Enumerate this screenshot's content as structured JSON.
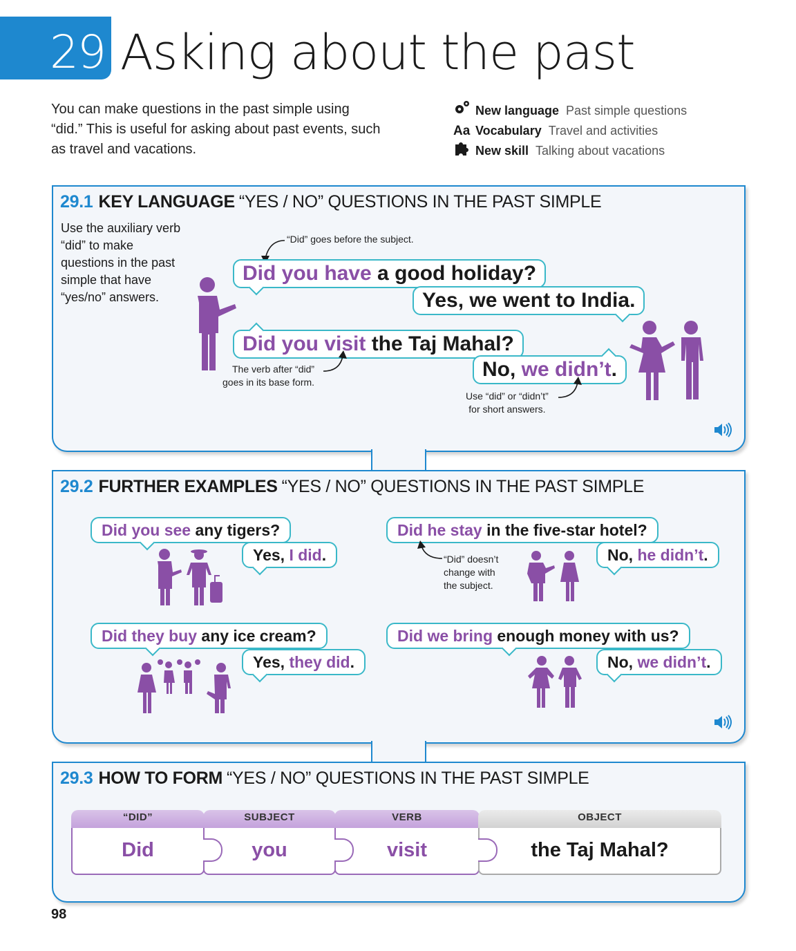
{
  "header": {
    "unit_number": "29",
    "title": "Asking about the past",
    "intro": "You can make questions in the past simple using “did.” This is useful for asking about past events, such as travel and vacations.",
    "meta": [
      {
        "icon": "gears-icon",
        "label": "New language",
        "value": "Past simple questions"
      },
      {
        "icon": "Aa",
        "label": "Vocabulary",
        "value": "Travel and activities"
      },
      {
        "icon": "puzzle-icon",
        "label": "New skill",
        "value": "Talking about vacations"
      }
    ]
  },
  "section1": {
    "number": "29.1",
    "key": "KEY LANGUAGE",
    "title": "“YES / NO” QUESTIONS IN THE PAST SIMPLE",
    "side_note": "Use the auxiliary verb “did” to make questions in the past simple that have “yes/no” answers.",
    "note_did_before": "“Did” goes before the subject.",
    "note_base_form": [
      "The verb after “did”",
      "goes in its base form."
    ],
    "note_short_answers": [
      "Use “did” or “didn’t”",
      "for short answers."
    ],
    "q1": {
      "hl": "Did you have",
      "rest": " a good holiday?"
    },
    "a1": "Yes, we went to India.",
    "q2": {
      "hl": "Did you visit",
      "rest": " the Taj Mahal?"
    },
    "a2": {
      "pre": "No, ",
      "hl": "we didn’t",
      "post": "."
    }
  },
  "section2": {
    "number": "29.2",
    "key": "FURTHER EXAMPLES",
    "title": "“YES / NO” QUESTIONS IN THE PAST SIMPLE",
    "ex1": {
      "q_hl": "Did you see",
      "q_rest": " any tigers?",
      "a_pre": "Yes, ",
      "a_hl": "I did",
      "a_post": "."
    },
    "ex2": {
      "q_hl": "Did he stay",
      "q_rest": " in the five-star hotel?",
      "a_pre": "No, ",
      "a_hl": "he didn’t",
      "a_post": "."
    },
    "ex3": {
      "q_hl": "Did they buy",
      "q_rest": " any ice cream?",
      "a_pre": "Yes, ",
      "a_hl": "they did",
      "a_post": "."
    },
    "ex4": {
      "q_hl": "Did we bring",
      "q_rest": " enough money with us?",
      "a_pre": "No, ",
      "a_hl": "we didn’t",
      "a_post": "."
    },
    "note_subject": [
      "“Did” doesn’t",
      "change with",
      "the subject."
    ]
  },
  "section3": {
    "number": "29.3",
    "key": "HOW TO FORM",
    "title": "“YES / NO” QUESTIONS IN THE PAST SIMPLE",
    "tiles": [
      {
        "caption": "“DID”",
        "value": "Did"
      },
      {
        "caption": "SUBJECT",
        "value": "you"
      },
      {
        "caption": "VERB",
        "value": "visit"
      },
      {
        "caption": "OBJECT",
        "value": "the Taj Mahal?"
      }
    ]
  },
  "page_number": "98",
  "colors": {
    "accent": "#1e88cf",
    "purple": "#8a4fa6",
    "bubble_border": "#3ab8c8"
  }
}
